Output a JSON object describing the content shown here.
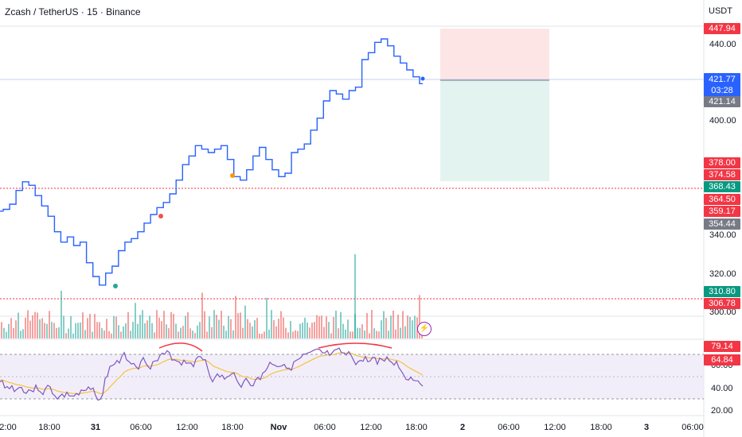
{
  "header": {
    "symbol_title": "Zcash / TetherUS · 15 · Binance",
    "currency": "USDT"
  },
  "price_axis": {
    "ticks": [
      "440.00",
      "400.00",
      "340.00",
      "320.00",
      "300.00"
    ]
  },
  "rsi_axis": {
    "ticks": [
      "60.00",
      "40.00",
      "20.00"
    ]
  },
  "badges": {
    "target": "447.94",
    "current_price": "421.77",
    "countdown": "03:28",
    "entry": "421.14",
    "b1": "378.00",
    "b2": "374.58",
    "b3": "368.43",
    "b4": "364.50",
    "b5": "359.17",
    "b6": "354.44",
    "vol1": "310.80",
    "vol2": "306.78",
    "rsi1": "79.14",
    "rsi2": "64.84"
  },
  "time_axis": [
    "2:00",
    "18:00",
    "31",
    "06:00",
    "12:00",
    "18:00",
    "Nov",
    "06:00",
    "12:00",
    "18:00",
    "2",
    "06:00",
    "12:00",
    "18:00",
    "3",
    "06:00"
  ],
  "colors": {
    "price_line": "#2962ff",
    "up": "#26a69a",
    "down": "#ef5350",
    "rsi": "#7e57c2",
    "rsi_ma": "#f5c242",
    "badge_red": "#f23645",
    "badge_green": "#089981",
    "badge_gray": "#787b86",
    "badge_blue": "#2962ff"
  },
  "icons": {
    "bolt": "lightning-icon"
  },
  "chart_data": {
    "type": "line",
    "series": [
      {
        "values": [
          348,
          349,
          352,
          360,
          365,
          363,
          357,
          351,
          345,
          336,
          330,
          333,
          328,
          330,
          318,
          310,
          305,
          312,
          316,
          325,
          330,
          332,
          336,
          341,
          346,
          350,
          353,
          358,
          366,
          375,
          380,
          386,
          384,
          382,
          384,
          386,
          378,
          368,
          366,
          372,
          380,
          385,
          378,
          372,
          368,
          370,
          382,
          384,
          387,
          395,
          402,
          412,
          418,
          416,
          413,
          418,
          420,
          436,
          440,
          446,
          448,
          444,
          438,
          434,
          430,
          426,
          422
        ]
      }
    ],
    "y_range": [
      286,
      454
    ],
    "position_tool": {
      "target": 447.94,
      "entry": 421.14,
      "stop": 374.58
    },
    "rsi": {
      "range": [
        20,
        90
      ],
      "bands": [
        30,
        70
      ]
    }
  }
}
